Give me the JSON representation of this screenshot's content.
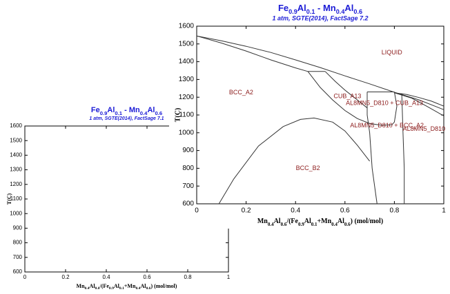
{
  "chart_data": [
    {
      "type": "line",
      "title": [
        "Fe",
        "0.9",
        "Al",
        "0.1",
        " - Mn",
        "0.4",
        "Al",
        "0.6"
      ],
      "subtitle": "1 atm, SGTE(2014), FactSage 7.1",
      "xlabel": [
        "Mn",
        "0.4",
        "Al",
        "0.6",
        "/(Fe",
        "0.9",
        "Al",
        "0.1",
        "+Mn",
        "0.4",
        "Al",
        "0.6",
        ") (mol/mol)"
      ],
      "ylabel": "T(C)",
      "xlim": [
        0,
        1
      ],
      "ylim": [
        600,
        1600
      ],
      "xticks": [
        0,
        0.2,
        0.4,
        0.6,
        0.8,
        1
      ],
      "yticks": [
        600,
        700,
        800,
        900,
        1000,
        1100,
        1200,
        1300,
        1400,
        1500,
        1600
      ],
      "series": [],
      "annotations": []
    },
    {
      "type": "line",
      "title": [
        "Fe",
        "0.9",
        "Al",
        "0.1",
        " - Mn",
        "0.4",
        "Al",
        "0.6"
      ],
      "subtitle": "1 atm, SGTE(2014), FactSage 7.2",
      "xlabel": [
        "Mn",
        "0.4",
        "Al",
        "0.6",
        "/(Fe",
        "0.9",
        "Al",
        "0.1",
        "+Mn",
        "0.4",
        "Al",
        "0.6",
        ") (mol/mol)"
      ],
      "ylabel": "T(C)",
      "xlim": [
        0,
        1
      ],
      "ylim": [
        600,
        1600
      ],
      "xticks": [
        0,
        0.2,
        0.4,
        0.6,
        0.8,
        1
      ],
      "yticks": [
        600,
        700,
        800,
        900,
        1000,
        1100,
        1200,
        1300,
        1400,
        1500,
        1600
      ],
      "series": [
        {
          "color": "#333333",
          "x": [
            0,
            0.1,
            0.2,
            0.3,
            0.4,
            0.5,
            0.6,
            0.7,
            0.8,
            0.9,
            1.0
          ],
          "values": [
            1545,
            1518,
            1487,
            1452,
            1410,
            1367,
            1320,
            1275,
            1228,
            1185,
            1130
          ]
        },
        {
          "color": "#333333",
          "x": [
            0,
            0.1,
            0.2,
            0.3,
            0.4,
            0.45
          ],
          "values": [
            1545,
            1505,
            1460,
            1410,
            1365,
            1345
          ]
        },
        {
          "color": "#333333",
          "x": [
            0.45,
            0.52
          ],
          "values": [
            1345,
            1345
          ]
        },
        {
          "color": "#333333",
          "x": [
            0.45,
            0.5,
            0.55,
            0.6,
            0.65,
            0.7,
            0.75,
            0.79
          ],
          "values": [
            1345,
            1255,
            1185,
            1125,
            1080,
            1052,
            1042,
            1045
          ]
        },
        {
          "color": "#333333",
          "x": [
            0.52,
            0.56,
            0.6,
            0.65,
            0.69
          ],
          "values": [
            1345,
            1290,
            1240,
            1185,
            1140
          ]
        },
        {
          "color": "#333333",
          "x": [
            0.73,
            0.71,
            0.7,
            0.69,
            0.69
          ],
          "values": [
            600,
            800,
            1000,
            1100,
            1230
          ]
        },
        {
          "color": "#333333",
          "x": [
            0.69,
            0.8
          ],
          "values": [
            1230,
            1230
          ]
        },
        {
          "color": "#333333",
          "x": [
            0.8,
            0.81,
            0.8,
            0.79
          ],
          "values": [
            1230,
            1150,
            1060,
            1045
          ]
        },
        {
          "color": "#333333",
          "x": [
            0.83,
            0.835,
            0.84,
            0.84
          ],
          "values": [
            1222,
            1000,
            800,
            600
          ]
        },
        {
          "color": "#333333",
          "x": [
            0.8,
            0.85,
            0.9,
            0.95,
            1.0
          ],
          "values": [
            1225,
            1215,
            1198,
            1178,
            1150
          ]
        },
        {
          "color": "#333333",
          "x": [
            0.8,
            0.87,
            0.93,
            1.0
          ],
          "values": [
            1225,
            1195,
            1150,
            1095
          ]
        },
        {
          "color": "#333333",
          "x": [
            0.09,
            0.15,
            0.25,
            0.35,
            0.42,
            0.475,
            0.55,
            0.6,
            0.65,
            0.7
          ],
          "values": [
            600,
            740,
            925,
            1035,
            1075,
            1083,
            1060,
            1010,
            930,
            840
          ]
        }
      ],
      "annotations": [
        "LIQUID",
        "BCC_A2",
        "CUB_A13",
        "AL8MN5_D810 + CUB_A13",
        "AL8MN5_D810 + BCC_A2",
        "AL8MN5_D810",
        "BCC_B2"
      ]
    }
  ]
}
